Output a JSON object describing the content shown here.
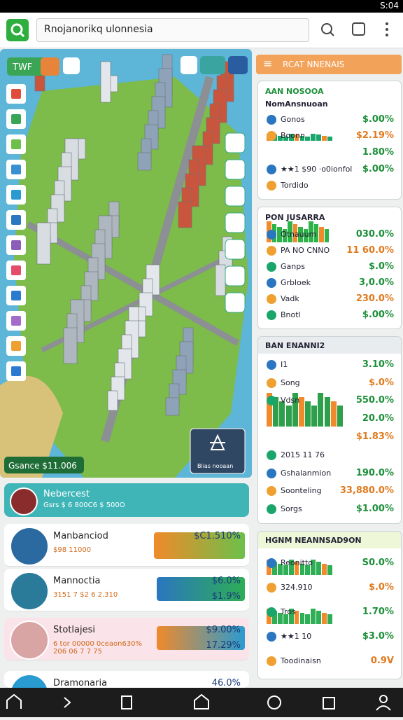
{
  "status_bar": {
    "time": "S:04"
  },
  "search_bar": {
    "query": "Rnojanorikq ulonnesia"
  },
  "map": {
    "tab": "TWF",
    "balance": "Gsance $11.006",
    "action_card": "Blias nooaan"
  },
  "right_panel": {
    "header": "RCAT NNENAIS",
    "cards": [
      {
        "title": "AAN NOSOOA",
        "subtitle": "NomAnsnuoan",
        "rows": [
          {
            "label": "Gonos",
            "value": "$.00%"
          },
          {
            "label": "Boonn",
            "value": "$2.19%"
          },
          {
            "value": "1.80%"
          },
          {
            "label": "★★1 $90 ·o0ionfol",
            "value": "$.00%"
          },
          {
            "label": "Tordido"
          }
        ]
      },
      {
        "title": "PON JUSARRA",
        "rows": [
          {
            "label": "Otnauum",
            "value": "030.0%"
          },
          {
            "label": "PA NO CNNO",
            "value": "11 60.0%"
          },
          {
            "label": "Ganps",
            "value": "$.0%"
          },
          {
            "label": "Grbloek",
            "value": "3,0.0%"
          },
          {
            "label": "Vadk",
            "value": "230.0%"
          },
          {
            "label": "Bnotl",
            "value": "$.00%"
          }
        ]
      },
      {
        "title": "BAN ENANNI2",
        "rows": [
          {
            "label": "I1",
            "value": "3.10%"
          },
          {
            "label": "Song",
            "value": "$.0%"
          },
          {
            "label": "Vdsn",
            "value": "550.0%"
          },
          {
            "value": "20.0%"
          },
          {
            "value": "$1.83%"
          },
          {
            "label": "2015 11 76"
          },
          {
            "label": "Gshalanmion",
            "value": "190.0%"
          },
          {
            "label": "Soonteling",
            "value": "33,880.0%"
          },
          {
            "label": "Sorgs",
            "value": "$1.00%"
          }
        ]
      },
      {
        "title": "HGNM NEANNSAD9ON",
        "rows": [
          {
            "label": "Reonitto",
            "value": "S0.0%"
          },
          {
            "label": "324.910",
            "value": "$.0%"
          },
          {
            "label": "Tros",
            "value": "1.70%"
          },
          {
            "label": "★★1 10",
            "value": "$3.0%"
          },
          {
            "label": "Toodinaisn",
            "value": "0.9V"
          }
        ]
      }
    ]
  },
  "list": {
    "items": [
      {
        "title": "Nebercest",
        "subtitle": "Gsrs $ 6 800C6 $ 500O"
      },
      {
        "title": "Manbanciod",
        "subtitle": "$98 11000",
        "values": [
          "$C1.510%"
        ]
      },
      {
        "title": "Mannoctia",
        "subtitle": "3151 7 $2 6 2.310",
        "values": [
          "$6.0%",
          "$1.9%"
        ]
      },
      {
        "title": "Stotlajesi",
        "subtitle": "6 tor 00000 0ceaon630% 206 06 7 7 75",
        "values": [
          "$9.00%",
          "17.29%"
        ]
      },
      {
        "title": "Dramonaria",
        "values": [
          "46.0%"
        ]
      }
    ]
  }
}
